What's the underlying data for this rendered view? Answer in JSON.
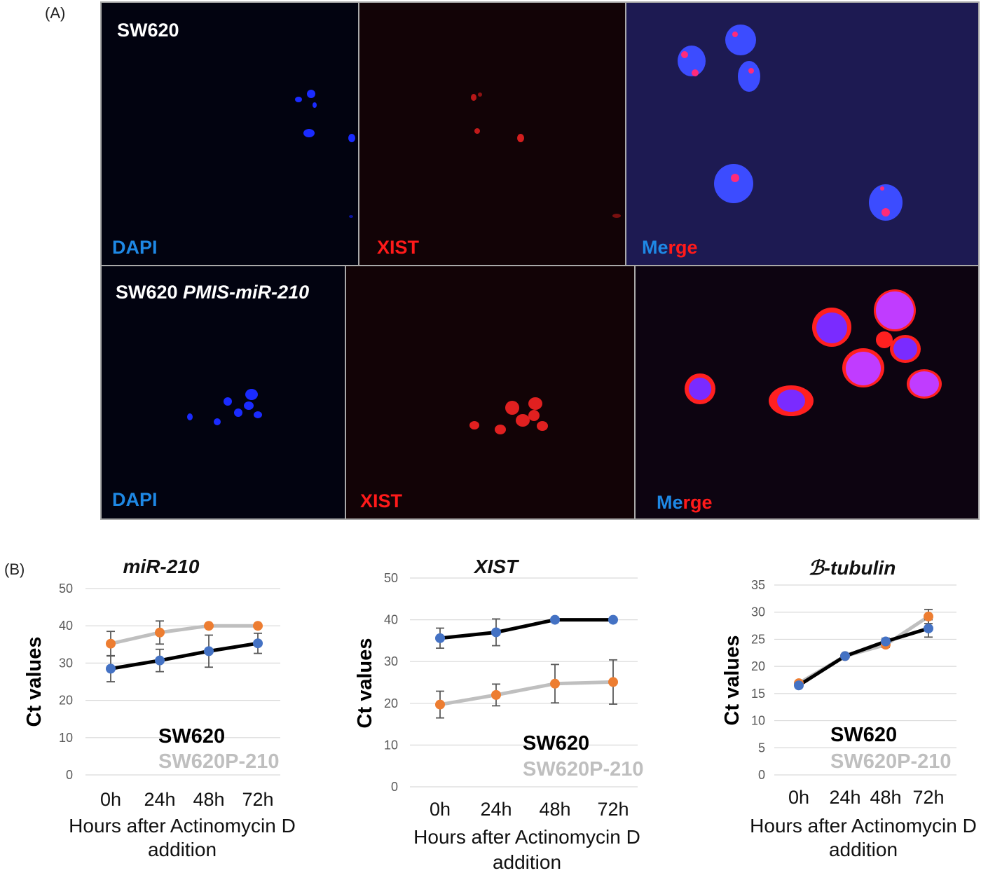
{
  "panelA": {
    "letter": "(A)",
    "row1": {
      "title": "SW620",
      "labels": {
        "dapi": "DAPI",
        "xist": "XIST",
        "merge_a": "Me",
        "merge_b": "rge"
      }
    },
    "row2": {
      "title_plain": "SW620 ",
      "title_italic": "PMIS-miR-210",
      "labels": {
        "dapi": "DAPI",
        "xist": "XIST",
        "merge_a": "Me",
        "merge_b": "rge"
      }
    }
  },
  "panelB": {
    "letter": "(B)"
  },
  "colors": {
    "sw620": "#000000",
    "sw620p": "#bfbfbf",
    "blue_marker": "#4472c4",
    "orange_marker": "#ed7d31",
    "grid": "#d9d9d9"
  },
  "chart_data": [
    {
      "type": "line",
      "title": "miR-210",
      "xlabel_lines": [
        "Hours after Actinomycin D",
        "addition"
      ],
      "ylabel": "Ct values",
      "categories": [
        "0h",
        "24h",
        "48h",
        "72h"
      ],
      "yticks": [
        0,
        10,
        20,
        30,
        40,
        50
      ],
      "ylim": [
        0,
        50
      ],
      "grid": true,
      "legend": [
        "SW620",
        "SW620P-210"
      ],
      "series": [
        {
          "name": "SW620",
          "values": [
            28.5,
            30.7,
            33.2,
            35.3
          ],
          "errors": [
            3.5,
            3,
            4.3,
            2.7
          ]
        },
        {
          "name": "SW620P-210",
          "values": [
            35.2,
            38.2,
            40,
            40
          ],
          "errors": [
            3.3,
            3.1,
            0,
            0
          ]
        }
      ]
    },
    {
      "type": "line",
      "title": "XIST",
      "xlabel_lines": [
        "Hours after Actinomycin D",
        "addition"
      ],
      "ylabel": "Ct values",
      "categories": [
        "0h",
        "24h",
        "48h",
        "72h"
      ],
      "yticks": [
        0,
        10,
        20,
        30,
        40,
        50
      ],
      "ylim": [
        0,
        50
      ],
      "grid": true,
      "legend": [
        "SW620",
        "SW620P-210"
      ],
      "series": [
        {
          "name": "SW620",
          "values": [
            35.6,
            37,
            40,
            40
          ],
          "errors": [
            2.4,
            3.2,
            0,
            0
          ]
        },
        {
          "name": "SW620P-210",
          "values": [
            19.7,
            22,
            24.7,
            25.1
          ],
          "errors": [
            3.2,
            2.6,
            4.6,
            5.3
          ]
        }
      ]
    },
    {
      "type": "line",
      "title": "ℬ-tubulin",
      "xlabel_lines": [
        "Hours after Actinomycin D",
        "addition"
      ],
      "ylabel": "Ct values",
      "categories": [
        "0h",
        "24h",
        "48h",
        "72h"
      ],
      "yticks": [
        0,
        5,
        10,
        15,
        20,
        25,
        30,
        35
      ],
      "ylim": [
        0,
        35
      ],
      "grid": true,
      "legend": [
        "SW620",
        "SW620P-210"
      ],
      "series": [
        {
          "name": "SW620",
          "values": [
            16.5,
            21.9,
            24.6,
            27
          ],
          "errors": [
            0.3,
            0.3,
            0.6,
            1.6
          ]
        },
        {
          "name": "SW620P-210",
          "values": [
            16.9,
            21.9,
            24,
            29.2
          ],
          "errors": [
            0.3,
            0.3,
            0.5,
            1.3
          ]
        }
      ]
    }
  ]
}
